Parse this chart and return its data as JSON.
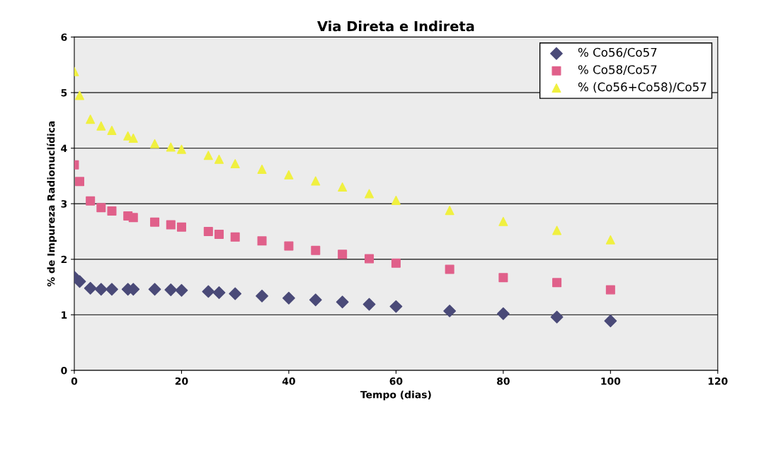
{
  "chart_data": {
    "type": "scatter",
    "title": "Via Direta e Indireta",
    "xlabel": "Tempo (dias)",
    "ylabel": "% de Impureza Radionuclídica",
    "x": [
      0,
      1,
      3,
      5,
      7,
      10,
      11,
      15,
      18,
      20,
      25,
      27,
      30,
      35,
      40,
      45,
      50,
      55,
      60,
      70,
      80,
      90,
      100
    ],
    "series": [
      {
        "name": "% Co56/Co57",
        "color": "#4a4a78",
        "marker": "diamond",
        "values": [
          1.68,
          1.6,
          1.48,
          1.46,
          1.46,
          1.46,
          1.46,
          1.46,
          1.45,
          1.44,
          1.42,
          1.4,
          1.38,
          1.34,
          1.3,
          1.27,
          1.23,
          1.19,
          1.15,
          1.07,
          1.02,
          0.96,
          0.89
        ]
      },
      {
        "name": "% Co58/Co57",
        "color": "#e0608a",
        "marker": "square",
        "values": [
          3.7,
          3.4,
          3.05,
          2.93,
          2.87,
          2.78,
          2.75,
          2.67,
          2.62,
          2.58,
          2.5,
          2.45,
          2.4,
          2.33,
          2.24,
          2.16,
          2.09,
          2.01,
          1.93,
          1.82,
          1.67,
          1.58,
          1.45
        ]
      },
      {
        "name": "% (Co56+Co58)/Co57",
        "color": "#f0f040",
        "marker": "triangle",
        "values": [
          5.38,
          4.95,
          4.52,
          4.4,
          4.32,
          4.22,
          4.18,
          4.08,
          4.02,
          3.98,
          3.87,
          3.8,
          3.72,
          3.62,
          3.52,
          3.41,
          3.3,
          3.18,
          3.06,
          2.88,
          2.68,
          2.52,
          2.35
        ]
      }
    ],
    "xlim": [
      0,
      120
    ],
    "xticks": [
      0,
      20,
      40,
      60,
      80,
      100,
      120
    ],
    "ylim": [
      0,
      6
    ],
    "yticks": [
      0,
      1,
      2,
      3,
      4,
      5,
      6
    ],
    "grid": "y",
    "legend": "top right"
  }
}
